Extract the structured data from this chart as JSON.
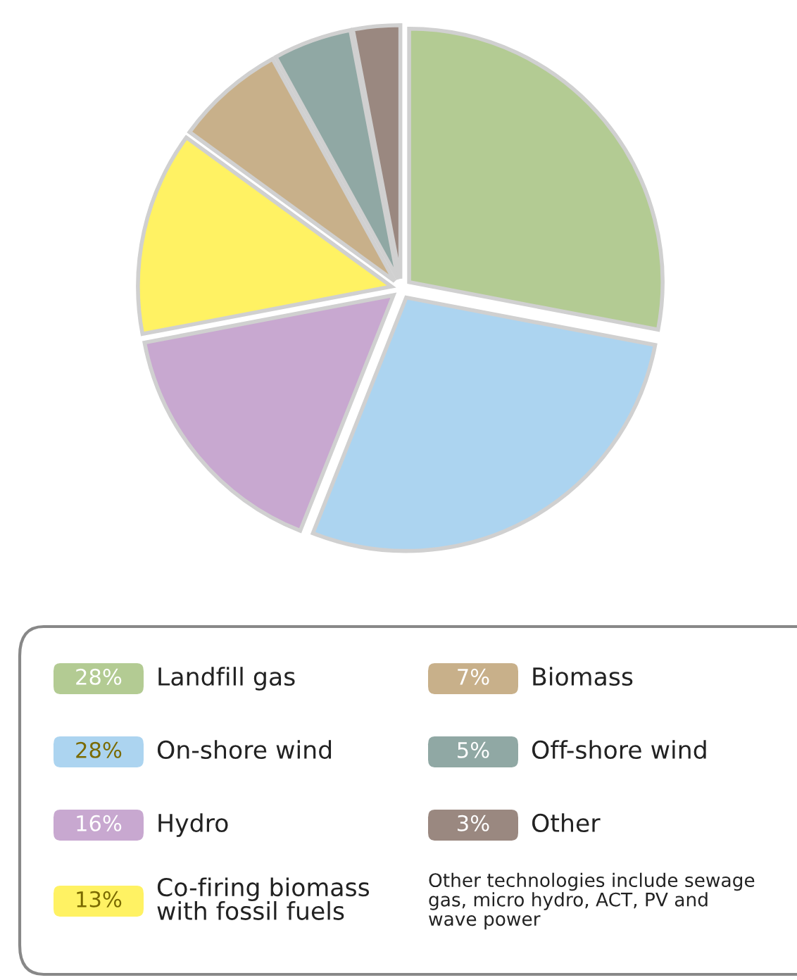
{
  "chart_data": {
    "type": "pie",
    "categories": [
      "Landfill gas",
      "On-shore wind",
      "Hydro",
      "Co-firing biomass\nwith fossil fuels",
      "Biomass",
      "Off-shore wind",
      "Other"
    ],
    "values": [
      28,
      28,
      16,
      13,
      7,
      5,
      3
    ],
    "colors": [
      "#b3cb93",
      "#acd4f0",
      "#c8a8d0",
      "#fff263",
      "#c8b08a",
      "#90a8a4",
      "#9a8880"
    ],
    "value_labels": [
      "28%",
      "28%",
      "16%",
      "13%",
      "7%",
      "5%",
      "3%"
    ],
    "legend": "bottom",
    "annotations": [
      "Other technologies include sewage\ngas, micro hydro, ACT, PV and\nwave power"
    ]
  }
}
